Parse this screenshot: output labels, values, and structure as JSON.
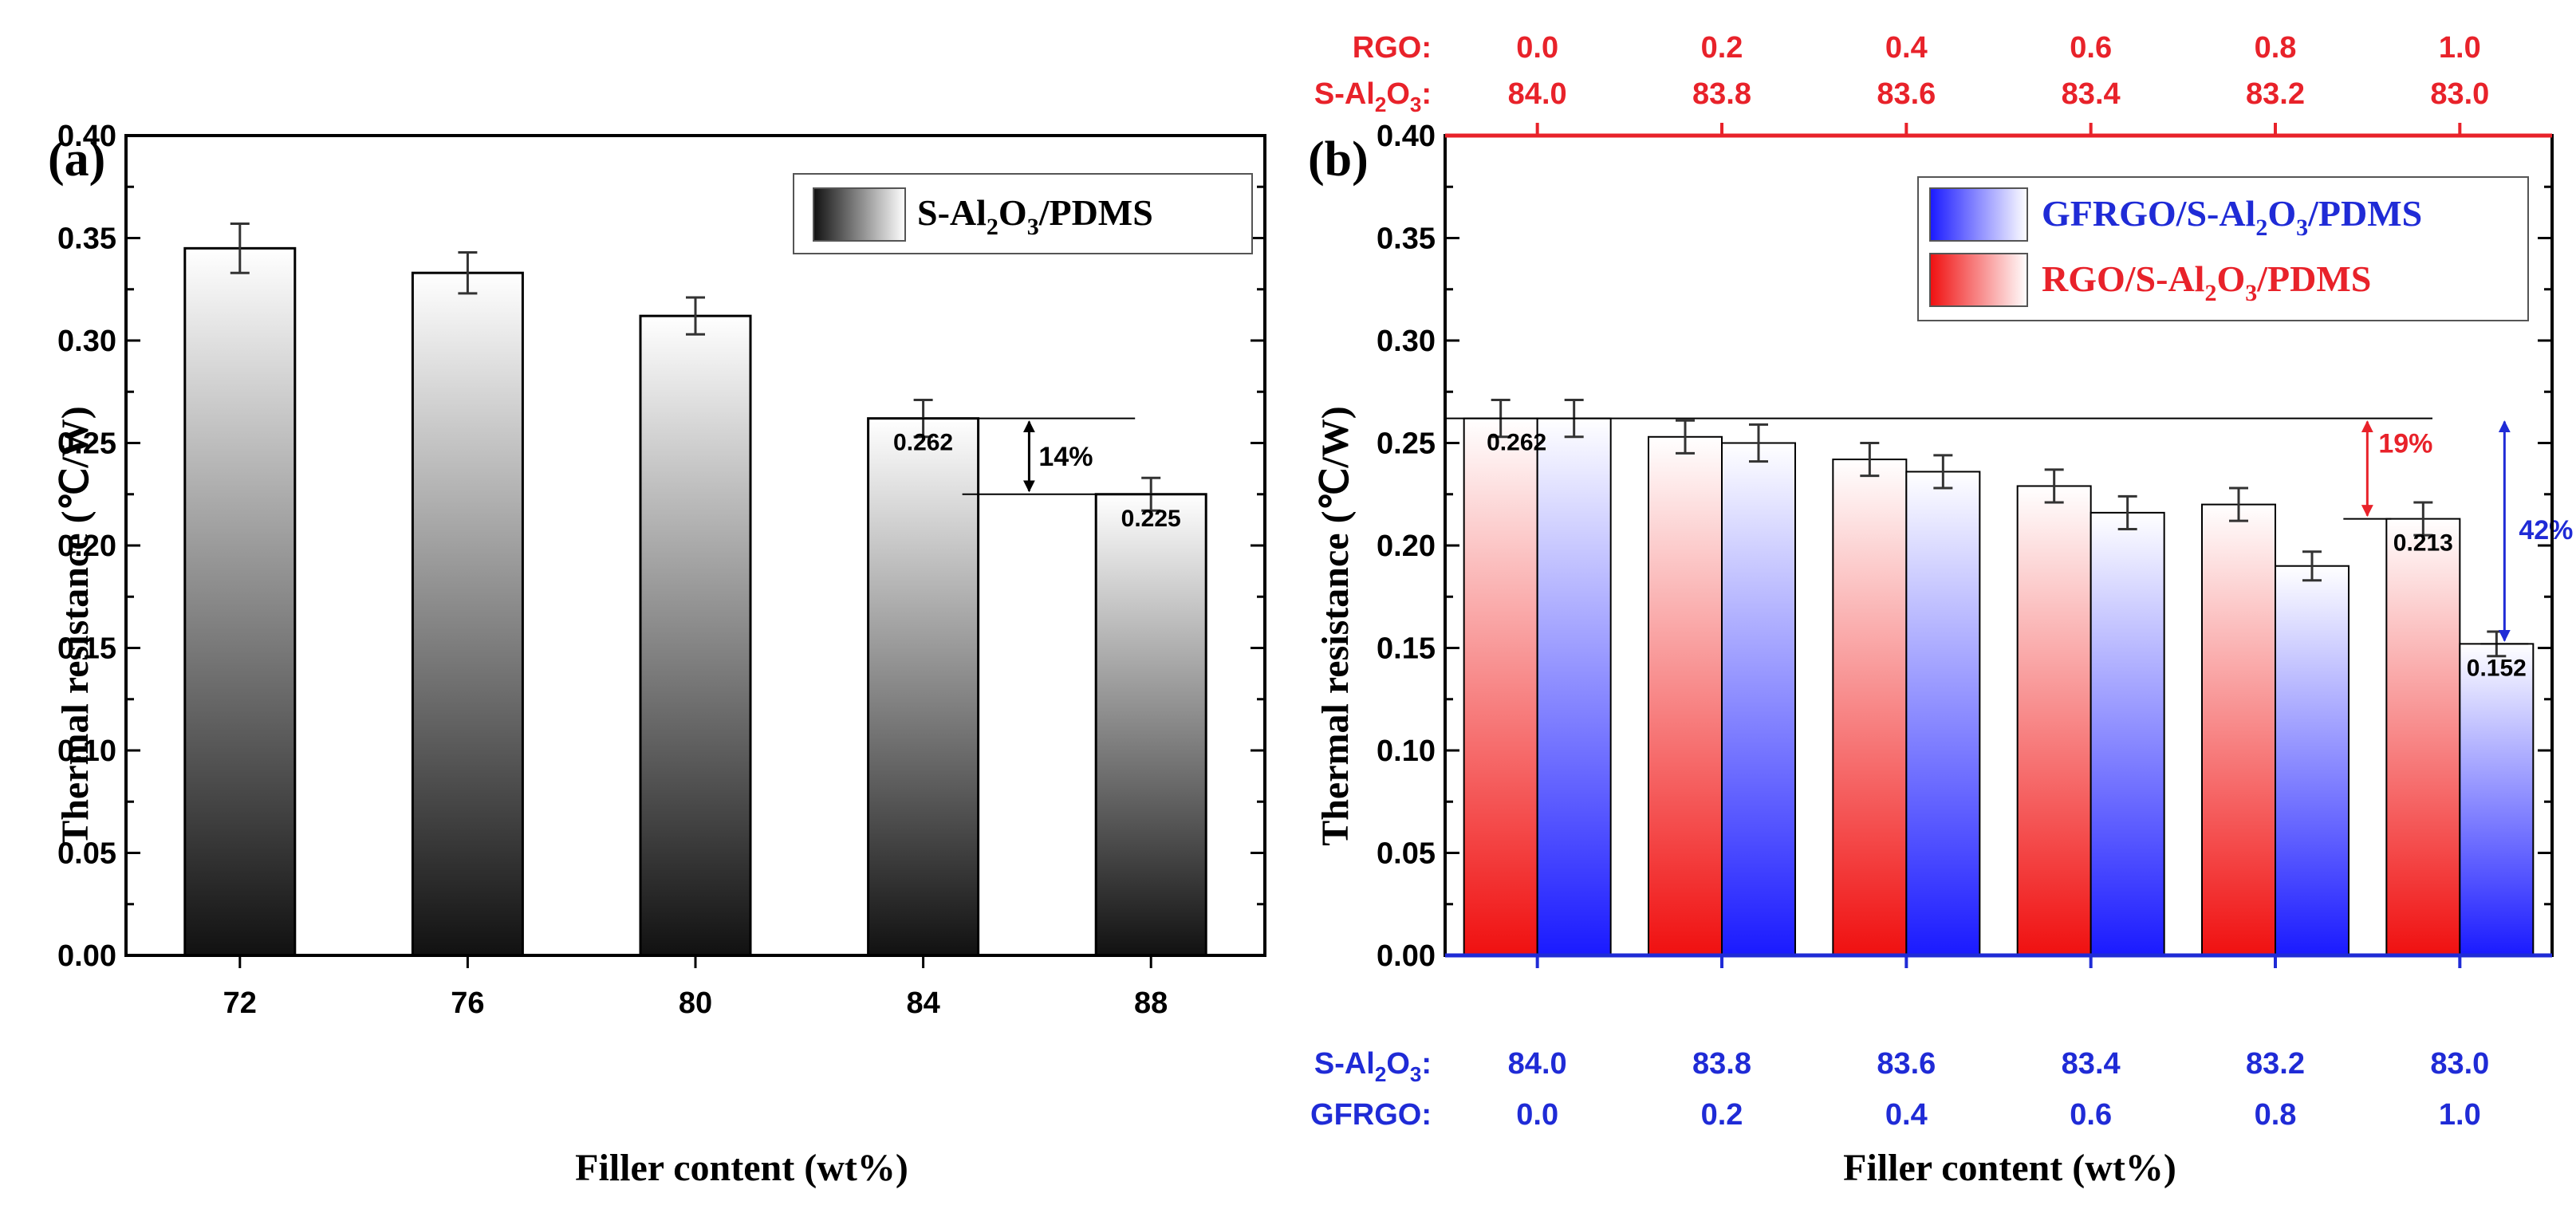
{
  "chart_data": [
    {
      "type": "bar",
      "panel_label": "(a)",
      "xlabel": "Filler content (wt%)",
      "ylabel": "Thermal resistance (℃/W)",
      "ylim": [
        0,
        0.4
      ],
      "yticks": [
        "0.00",
        "0.05",
        "0.10",
        "0.15",
        "0.20",
        "0.25",
        "0.30",
        "0.35",
        "0.40"
      ],
      "categories": [
        "72",
        "76",
        "80",
        "84",
        "88"
      ],
      "series": [
        {
          "name": "S-Al2O3/PDMS",
          "legend_parts": [
            "S-Al",
            "2",
            "O",
            "3",
            "/PDMS"
          ],
          "values": [
            0.345,
            0.333,
            0.312,
            0.262,
            0.225
          ],
          "errors": [
            0.012,
            0.01,
            0.009,
            0.009,
            0.008
          ],
          "colors": [
            "#111111",
            "#ffffff"
          ]
        }
      ],
      "data_labels": [
        {
          "category": "84",
          "text": "0.262"
        },
        {
          "category": "88",
          "text": "0.225"
        }
      ],
      "annotations": [
        {
          "text": "14%",
          "from": 0.262,
          "to": 0.225,
          "color": "#000000"
        }
      ]
    },
    {
      "type": "bar",
      "panel_label": "(b)",
      "xlabel": "Filler content (wt%)",
      "ylabel": "Thermal resistance (℃/W)",
      "ylim": [
        0,
        0.4
      ],
      "yticks": [
        "0.00",
        "0.05",
        "0.10",
        "0.15",
        "0.20",
        "0.25",
        "0.30",
        "0.35",
        "0.40"
      ],
      "bottom_axis": {
        "rows": [
          {
            "label_parts": [
              "S-Al",
              "2",
              "O",
              "3",
              ":"
            ],
            "values": [
              "84.0",
              "83.8",
              "83.6",
              "83.4",
              "83.2",
              "83.0"
            ]
          },
          {
            "label_parts": [
              "GFRGO:"
            ],
            "values": [
              "0.0",
              "0.2",
              "0.4",
              "0.6",
              "0.8",
              "1.0"
            ]
          }
        ],
        "color": "#1f2bd6"
      },
      "top_axis": {
        "rows": [
          {
            "label_parts": [
              "RGO:"
            ],
            "values": [
              "0.0",
              "0.2",
              "0.4",
              "0.6",
              "0.8",
              "1.0"
            ]
          },
          {
            "label_parts": [
              "S-Al",
              "2",
              "O",
              "3",
              ":"
            ],
            "values": [
              "84.0",
              "83.8",
              "83.6",
              "83.4",
              "83.2",
              "83.0"
            ]
          }
        ],
        "color": "#e8222a"
      },
      "series": [
        {
          "name": "RGO/S-Al2O3/PDMS",
          "legend_parts": [
            "RGO/S-Al",
            "2",
            "O",
            "3",
            "/PDMS"
          ],
          "values": [
            0.262,
            0.253,
            0.242,
            0.229,
            0.22,
            0.213
          ],
          "errors": [
            0.009,
            0.008,
            0.008,
            0.008,
            0.008,
            0.008
          ],
          "colors": [
            "#f01010",
            "#ffffff"
          ]
        },
        {
          "name": "GFRGO/S-Al2O3/PDMS",
          "legend_parts": [
            "GFRGO/S-Al",
            "2",
            "O",
            "3",
            "/PDMS"
          ],
          "values": [
            0.262,
            0.25,
            0.236,
            0.216,
            0.19,
            0.152
          ],
          "errors": [
            0.009,
            0.009,
            0.008,
            0.008,
            0.007,
            0.006
          ],
          "colors": [
            "#1a1aff",
            "#ffffff"
          ]
        }
      ],
      "data_labels": [
        {
          "series": 0,
          "index": 0,
          "text": "0.262"
        },
        {
          "series": 0,
          "index": 5,
          "text": "0.213"
        },
        {
          "series": 1,
          "index": 5,
          "text": "0.152"
        }
      ],
      "annotations": [
        {
          "text": "19%",
          "from": 0.262,
          "to": 0.213,
          "color": "#e8222a"
        },
        {
          "text": "42%",
          "from": 0.262,
          "to": 0.152,
          "color": "#1f2bd6"
        }
      ]
    }
  ]
}
